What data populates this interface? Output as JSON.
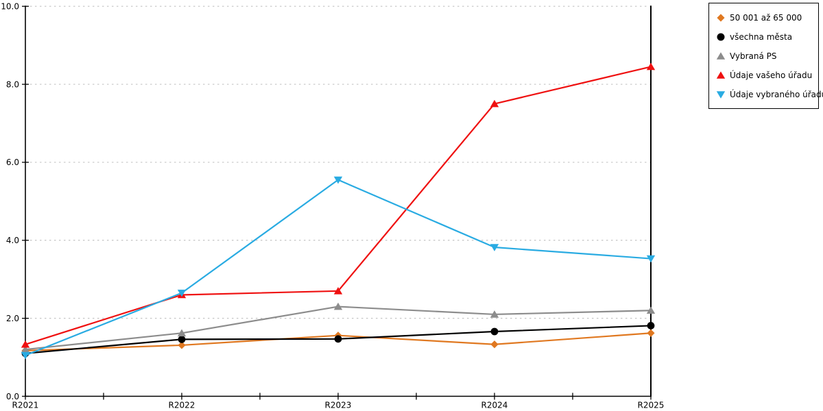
{
  "chart_data": {
    "type": "line",
    "title": "",
    "xlabel": "",
    "ylabel": "",
    "categories": [
      "R2021",
      "R2022",
      "R2023",
      "R2024",
      "R2025"
    ],
    "series": [
      {
        "name": "50 001 až 65 000",
        "marker": "diamond",
        "color": "#E07820",
        "values": [
          1.17,
          1.31,
          1.56,
          1.33,
          1.62
        ]
      },
      {
        "name": "všechna města",
        "marker": "circle",
        "color": "#000000",
        "values": [
          1.1,
          1.46,
          1.47,
          1.66,
          1.81
        ]
      },
      {
        "name": "Vybraná PS",
        "marker": "triangle-up",
        "color": "#8C8C8C",
        "values": [
          1.2,
          1.62,
          2.3,
          2.1,
          2.2
        ]
      },
      {
        "name": "Údaje vašeho úřadu",
        "marker": "triangle-up",
        "color": "#EF1010",
        "values": [
          1.33,
          2.6,
          2.7,
          7.5,
          8.45
        ]
      },
      {
        "name": "Údaje vybraného úřadu",
        "marker": "triangle-down",
        "color": "#29ABE2",
        "values": [
          1.05,
          2.65,
          5.55,
          3.82,
          3.53
        ]
      }
    ],
    "ylim": [
      0,
      10
    ],
    "ytick_step": 2,
    "ytick_labels": [
      "0.0",
      "2.0",
      "4.0",
      "6.0",
      "8.0",
      "10.0"
    ],
    "grid": "horizontal-dotted",
    "grid_color": "#C4C4C4",
    "axis_color": "#000000",
    "legend_position": "outside-top-right"
  }
}
